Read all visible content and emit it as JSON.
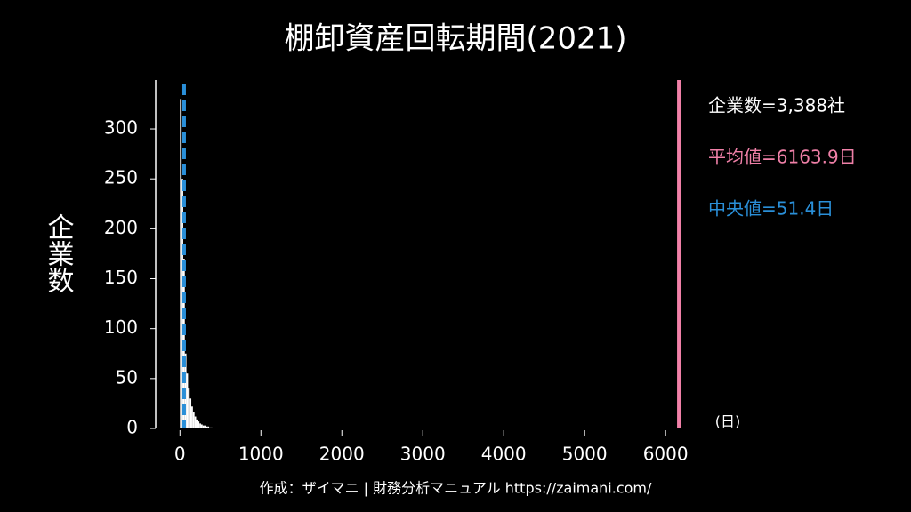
{
  "chart_data": {
    "type": "histogram",
    "title": "棚卸資産回転期間(2021)",
    "ylabel": "企業数",
    "xlabel": "(日)",
    "bins": [
      0,
      20,
      40,
      60,
      80,
      100,
      120,
      140,
      160,
      180,
      200,
      220,
      240,
      260,
      280,
      300,
      320,
      340,
      360,
      380,
      400
    ],
    "values": [
      330,
      250,
      170,
      75,
      55,
      40,
      30,
      22,
      16,
      12,
      9,
      7,
      5,
      4,
      3,
      3,
      2,
      2,
      1,
      1
    ],
    "color": "#ffffff",
    "xlim": [
      -300,
      6350
    ],
    "xticks": [
      0,
      1000,
      2000,
      3000,
      4000,
      5000,
      6000
    ],
    "ylim": [
      0,
      349
    ],
    "yticks": [
      0,
      50,
      100,
      150,
      200,
      250,
      300
    ],
    "mean": 6163.9,
    "mean_color": "#f080a8",
    "median": 51.4,
    "median_color": "#2a8fd8",
    "annotations": [
      {
        "text": "企業数=3,388社",
        "color": "#ffffff"
      },
      {
        "text": "平均値=6163.9日",
        "color": "#f080a8"
      },
      {
        "text": "中央値=51.4日",
        "color": "#2a8fd8"
      }
    ],
    "footer": "作成：ザイマニ | 財務分析マニュアル https://zaimani.com/"
  }
}
